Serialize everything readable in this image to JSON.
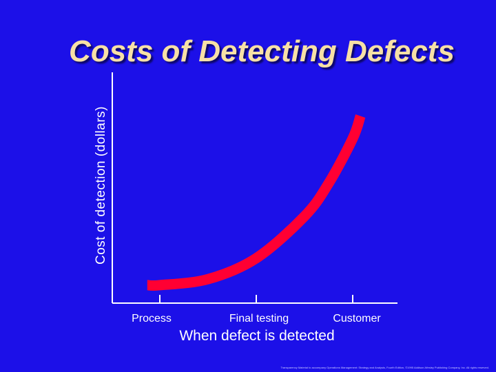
{
  "slide": {
    "title": "Costs of Detecting Defects",
    "credit": "Transparency Material to accompany Operations Management: Strategy and Analysis, Fourth Edition, ©1995 Addison-Wesley Publishing Company, Inc. All rights reserved."
  },
  "colors": {
    "background": "#1c10e8",
    "title": "#f7e0a6",
    "curve": "#ff0033",
    "axis": "#ffffff"
  },
  "chart_data": {
    "type": "line",
    "title": "Costs of Detecting Defects",
    "xlabel": "When defect is detected",
    "ylabel": "Cost of detection (dollars)",
    "categories": [
      "Process",
      "Final testing",
      "Customer"
    ],
    "y_tick_labels": false,
    "series": [
      {
        "x": [
          -0.13,
          0.0,
          0.5,
          1.0,
          1.5,
          1.75,
          2.0,
          2.08
        ],
        "values": [
          0.12,
          0.12,
          0.16,
          0.3,
          0.58,
          0.8,
          1.1,
          1.25
        ]
      }
    ],
    "xlim": [
      -0.5,
      2.45
    ],
    "ylim": [
      0,
      1.45
    ],
    "grid": false,
    "legend": "none"
  }
}
